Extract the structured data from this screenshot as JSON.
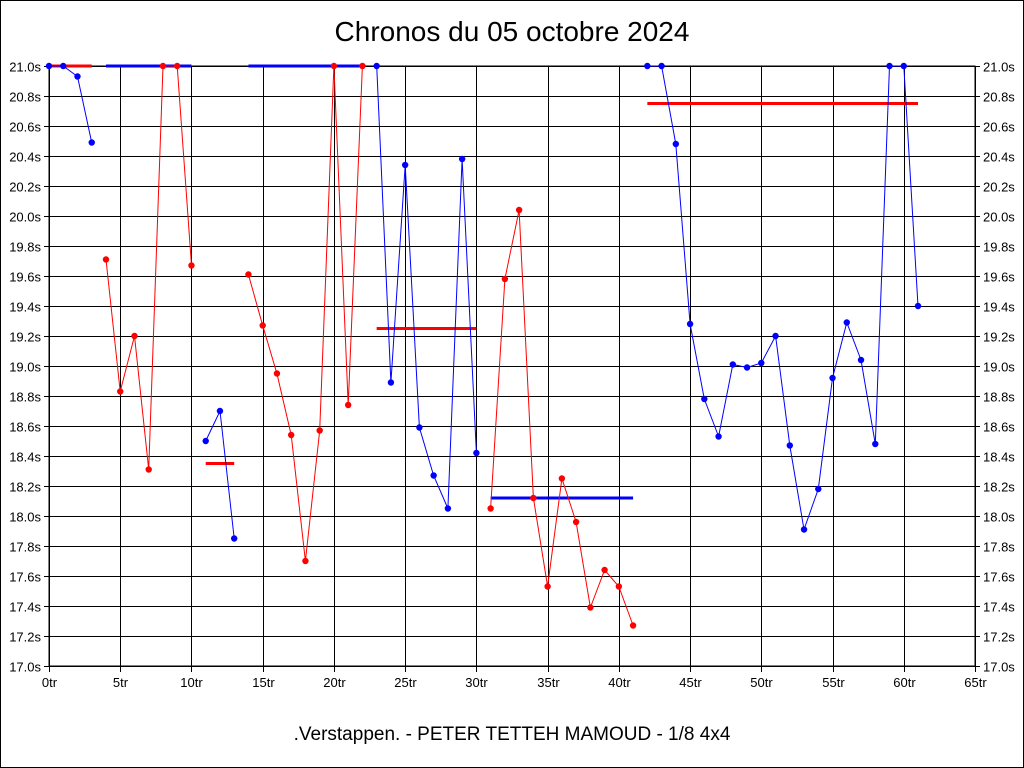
{
  "chart_data": {
    "type": "line",
    "title": "Chronos du 05 octobre 2024",
    "subtitle": ".Verstappen. - PETER TETTEH MAMOUD - 1/8 4x4",
    "xlim": [
      0,
      65
    ],
    "ylim": [
      17.0,
      21.0
    ],
    "x_ticks": [
      0,
      5,
      10,
      15,
      20,
      25,
      30,
      35,
      40,
      45,
      50,
      55,
      60,
      65
    ],
    "x_tick_labels": [
      "0tr",
      "5tr",
      "10tr",
      "15tr",
      "20tr",
      "25tr",
      "30tr",
      "35tr",
      "40tr",
      "45tr",
      "50tr",
      "55tr",
      "60tr",
      "65tr"
    ],
    "y_ticks": [
      17.0,
      17.2,
      17.4,
      17.6,
      17.8,
      18.0,
      18.2,
      18.4,
      18.6,
      18.8,
      19.0,
      19.2,
      19.4,
      19.6,
      19.8,
      20.0,
      20.2,
      20.4,
      20.6,
      20.8,
      21.0
    ],
    "y_tick_labels": [
      "17.0s",
      "17.2s",
      "17.4s",
      "17.6s",
      "17.8s",
      "18.0s",
      "18.2s",
      "18.4s",
      "18.6s",
      "18.8s",
      "19.0s",
      "19.2s",
      "19.4s",
      "19.6s",
      "19.8s",
      "20.0s",
      "20.2s",
      "20.4s",
      "20.6s",
      "20.8s",
      "21.0s"
    ],
    "grid": true,
    "colors": {
      "blue": "#0000ff",
      "red": "#ff0000",
      "grid": "#000000"
    },
    "segments": [
      {
        "color": "blue",
        "x": [
          0,
          1,
          2,
          3
        ],
        "y": [
          21.0,
          21.0,
          20.93,
          20.49
        ]
      },
      {
        "color": "red",
        "x": [
          4,
          5,
          6,
          7,
          8,
          9,
          10
        ],
        "y": [
          19.71,
          18.83,
          19.2,
          18.31,
          21.0,
          21.0,
          19.67
        ]
      },
      {
        "color": "blue",
        "x": [
          11,
          12,
          13
        ],
        "y": [
          18.5,
          18.7,
          17.85
        ]
      },
      {
        "color": "red",
        "x": [
          14,
          15,
          16,
          17,
          18,
          19,
          20,
          21,
          22
        ],
        "y": [
          19.61,
          19.27,
          18.95,
          18.54,
          17.7,
          18.57,
          21.0,
          18.74,
          21.0
        ]
      },
      {
        "color": "blue",
        "x": [
          23,
          24,
          25,
          26,
          27,
          28,
          29,
          30
        ],
        "y": [
          21.0,
          18.89,
          20.34,
          18.59,
          18.27,
          18.05,
          20.38,
          18.42
        ]
      },
      {
        "color": "red",
        "x": [
          31,
          32,
          33,
          34,
          35,
          36,
          37,
          38,
          39,
          40,
          41
        ],
        "y": [
          18.05,
          19.58,
          20.04,
          18.12,
          17.53,
          18.25,
          17.96,
          17.39,
          17.64,
          17.53,
          17.27
        ]
      },
      {
        "color": "blue",
        "x": [
          42,
          43,
          44,
          45,
          46,
          47,
          48,
          49,
          50,
          51,
          52,
          53,
          54,
          55,
          56,
          57,
          58,
          59,
          60,
          61
        ],
        "y": [
          21.0,
          21.0,
          20.48,
          19.28,
          18.78,
          18.53,
          19.01,
          18.99,
          19.02,
          19.2,
          18.47,
          17.91,
          18.18,
          18.92,
          19.29,
          19.04,
          18.48,
          21.0,
          21.0,
          19.4
        ]
      }
    ],
    "averages": [
      {
        "color": "red",
        "x_start": 0,
        "x_end": 3,
        "y": 21.0
      },
      {
        "color": "blue",
        "x_start": 4,
        "x_end": 10,
        "y": 21.0
      },
      {
        "color": "red",
        "x_start": 11,
        "x_end": 13,
        "y": 18.35
      },
      {
        "color": "blue",
        "x_start": 14,
        "x_end": 22,
        "y": 21.0
      },
      {
        "color": "red",
        "x_start": 23,
        "x_end": 30,
        "y": 19.25
      },
      {
        "color": "blue",
        "x_start": 31,
        "x_end": 41,
        "y": 18.12
      },
      {
        "color": "red",
        "x_start": 42,
        "x_end": 61,
        "y": 20.75
      }
    ]
  }
}
